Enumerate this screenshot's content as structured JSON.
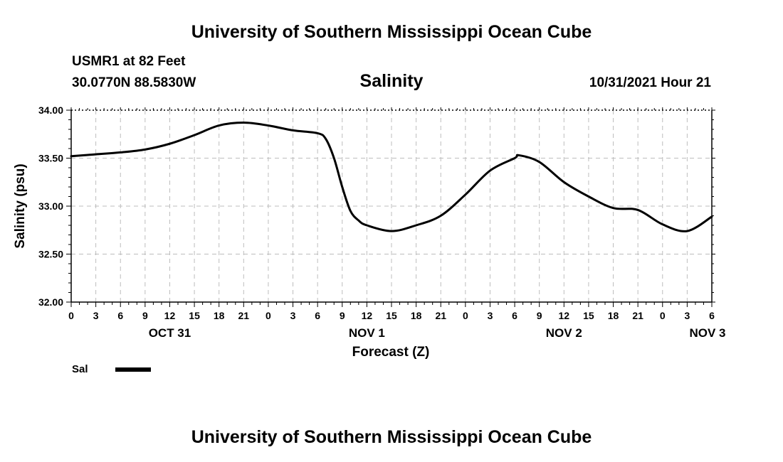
{
  "header": {
    "title_top": "University of Southern Mississippi Ocean Cube",
    "station": "USMR1 at 82 Feet",
    "coords": "30.0770N  88.5830W",
    "plot_title": "Salinity",
    "timestamp": "10/31/2021 Hour 21",
    "title_bottom": "University of Southern Mississippi Ocean Cube"
  },
  "chart_data": {
    "type": "line",
    "title": "Salinity",
    "xlabel": "Forecast (Z)",
    "ylabel": "Salinity (psu)",
    "xlim": [
      0,
      78
    ],
    "ylim": [
      32.0,
      34.0
    ],
    "x_tick_labels": [
      "0",
      "3",
      "6",
      "9",
      "12",
      "15",
      "18",
      "21",
      "0",
      "3",
      "6",
      "9",
      "12",
      "15",
      "18",
      "21",
      "0",
      "3",
      "6",
      "9",
      "12",
      "15",
      "18",
      "21",
      "0",
      "3",
      "6"
    ],
    "y_tick_labels": [
      "34.00",
      "33.50",
      "33.00",
      "32.50",
      "32.00"
    ],
    "y_ticks": [
      34.0,
      33.5,
      33.0,
      32.5,
      32.0
    ],
    "date_labels": [
      {
        "label": "OCT 31",
        "hour": 12
      },
      {
        "label": "NOV 1",
        "hour": 36
      },
      {
        "label": "NOV 2",
        "hour": 60
      },
      {
        "label": "NOV 3",
        "hour": 78
      }
    ],
    "grid": true,
    "legend": "bottom-left",
    "series": [
      {
        "name": "Sal",
        "color": "#000000",
        "x": [
          0,
          3,
          6,
          9,
          12,
          15,
          18,
          21,
          24,
          27,
          30,
          31,
          32,
          33,
          34,
          35,
          36,
          39,
          42,
          45,
          48,
          51,
          54,
          54.5,
          57,
          60,
          63,
          66,
          69,
          72,
          75,
          78
        ],
        "y": [
          33.52,
          33.54,
          33.56,
          33.59,
          33.65,
          33.74,
          33.84,
          33.87,
          33.84,
          33.79,
          33.76,
          33.7,
          33.5,
          33.2,
          32.95,
          32.85,
          32.8,
          32.74,
          32.8,
          32.9,
          33.12,
          33.37,
          33.5,
          33.53,
          33.46,
          33.25,
          33.1,
          32.98,
          32.96,
          32.81,
          32.74,
          32.89
        ]
      }
    ]
  }
}
